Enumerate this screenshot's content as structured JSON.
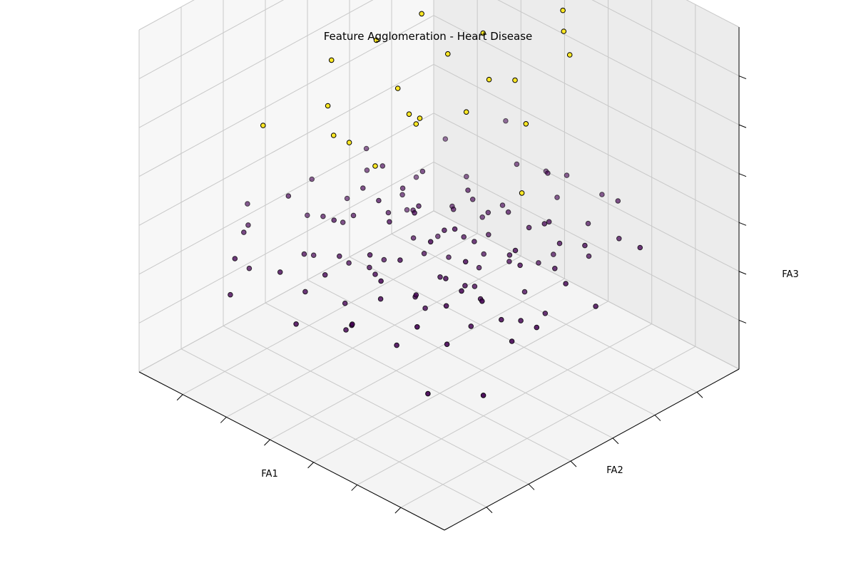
{
  "chart_data": {
    "type": "scatter",
    "title": "Feature Agglomeration - Heart Disease",
    "xlabel": "FA1",
    "ylabel": "FA2",
    "zlabel": "FA3",
    "grid": true,
    "xlim": [
      -3,
      3
    ],
    "ylim": [
      -3,
      3
    ],
    "zlim": [
      -3,
      3
    ],
    "series": [
      {
        "cluster": 0,
        "color": "#440154",
        "points": [
          [
            -2.4,
            -0.5,
            -0.9
          ],
          [
            -2.2,
            0.3,
            -0.6
          ],
          [
            -2.3,
            -0.9,
            -1.0
          ],
          [
            -2.0,
            -2.3,
            -1.4
          ],
          [
            -1.9,
            1.0,
            -0.4
          ],
          [
            -1.8,
            -0.2,
            -1.2
          ],
          [
            -1.7,
            -1.6,
            -1.0
          ],
          [
            -1.6,
            0.7,
            -0.8
          ],
          [
            -1.5,
            -2.0,
            -0.6
          ],
          [
            -1.5,
            0.0,
            -0.2
          ],
          [
            -1.4,
            1.6,
            -1.1
          ],
          [
            -1.3,
            -1.2,
            -0.7
          ],
          [
            -1.2,
            0.5,
            -1.3
          ],
          [
            -1.1,
            -0.6,
            -0.3
          ],
          [
            -1.0,
            2.0,
            -0.9
          ],
          [
            -1.0,
            -1.9,
            -1.2
          ],
          [
            -0.9,
            0.9,
            -0.5
          ],
          [
            -0.8,
            -0.3,
            -1.0
          ],
          [
            -0.8,
            -1.0,
            0.1
          ],
          [
            -0.7,
            1.3,
            -1.4
          ],
          [
            -0.6,
            -2.4,
            -0.8
          ],
          [
            -0.5,
            0.2,
            -0.6
          ],
          [
            -0.5,
            -0.8,
            -1.3
          ],
          [
            -0.4,
            1.8,
            -0.2
          ],
          [
            -0.3,
            -1.5,
            -0.9
          ],
          [
            -0.3,
            0.6,
            -1.1
          ],
          [
            -0.2,
            -0.1,
            -0.4
          ],
          [
            -0.1,
            2.3,
            -1.0
          ],
          [
            -0.1,
            -2.0,
            -1.3
          ],
          [
            0.0,
            1.0,
            -0.7
          ],
          [
            0.0,
            -0.5,
            0.0
          ],
          [
            0.1,
            0.3,
            -1.2
          ],
          [
            0.2,
            -1.2,
            -0.5
          ],
          [
            0.2,
            1.5,
            -0.9
          ],
          [
            0.3,
            -2.6,
            -1.1
          ],
          [
            0.4,
            0.0,
            -0.3
          ],
          [
            0.5,
            -0.9,
            -1.0
          ],
          [
            0.5,
            2.1,
            -0.6
          ],
          [
            0.6,
            -1.7,
            -0.8
          ],
          [
            0.7,
            0.7,
            -1.3
          ],
          [
            0.8,
            -0.4,
            -0.2
          ],
          [
            0.9,
            1.2,
            -1.1
          ],
          [
            1.0,
            -2.2,
            -0.7
          ],
          [
            1.0,
            -0.8,
            -1.2
          ],
          [
            1.1,
            0.4,
            -0.5
          ],
          [
            1.2,
            1.8,
            -1.0
          ],
          [
            1.3,
            -1.4,
            -0.9
          ],
          [
            1.4,
            -0.1,
            -0.4
          ],
          [
            1.5,
            0.9,
            -1.3
          ],
          [
            1.6,
            -2.5,
            -0.6
          ],
          [
            1.7,
            -0.6,
            -0.8
          ],
          [
            1.8,
            1.4,
            -1.1
          ],
          [
            1.9,
            -1.1,
            -0.3
          ],
          [
            2.0,
            0.2,
            -1.0
          ],
          [
            2.1,
            -1.8,
            -0.7
          ],
          [
            2.2,
            0.8,
            -0.5
          ],
          [
            2.3,
            -0.3,
            -1.2
          ],
          [
            2.4,
            -1.4,
            -0.9
          ],
          [
            -2.1,
            -1.3,
            -0.2
          ],
          [
            -1.9,
            -0.7,
            -0.9
          ],
          [
            -1.6,
            -1.2,
            -0.3
          ],
          [
            -1.4,
            0.2,
            -0.6
          ],
          [
            -1.2,
            -0.4,
            -1.0
          ],
          [
            -1.1,
            1.1,
            -0.4
          ],
          [
            -0.9,
            -1.4,
            -0.6
          ],
          [
            -0.6,
            -0.6,
            -0.8
          ],
          [
            -0.4,
            0.4,
            -1.2
          ],
          [
            -0.2,
            -1.0,
            -0.5
          ],
          [
            0.1,
            -0.2,
            -0.9
          ],
          [
            0.3,
            0.9,
            -0.4
          ],
          [
            0.6,
            -0.5,
            -1.1
          ],
          [
            0.8,
            0.3,
            -0.7
          ],
          [
            1.1,
            -1.0,
            -0.4
          ],
          [
            1.3,
            0.6,
            -0.8
          ],
          [
            1.6,
            -0.3,
            -1.0
          ],
          [
            1.9,
            0.5,
            -0.6
          ],
          [
            -1.7,
            0.4,
            -1.4
          ],
          [
            -1.3,
            0.8,
            -0.2
          ],
          [
            -0.7,
            0.0,
            -1.2
          ],
          [
            -0.2,
            0.8,
            -0.9
          ],
          [
            0.4,
            -1.5,
            -1.3
          ],
          [
            0.9,
            -0.1,
            -0.6
          ],
          [
            1.4,
            0.3,
            -0.2
          ],
          [
            -0.5,
            -1.7,
            -0.4
          ],
          [
            0.0,
            -1.3,
            -0.7
          ],
          [
            0.7,
            -2.0,
            -1.0
          ],
          [
            -1.0,
            0.4,
            -0.7
          ],
          [
            -0.3,
            1.1,
            -0.6
          ],
          [
            0.5,
            1.4,
            -1.2
          ],
          [
            1.2,
            -0.5,
            -0.6
          ],
          [
            -1.4,
            -0.8,
            -1.2
          ],
          [
            -0.8,
            0.6,
            -1.0
          ],
          [
            0.2,
            0.5,
            -0.5
          ],
          [
            0.8,
            -1.2,
            -0.8
          ],
          [
            1.5,
            -1.0,
            -1.2
          ],
          [
            -2.5,
            0.6,
            -1.0
          ],
          [
            2.5,
            0.0,
            -0.8
          ],
          [
            -1.8,
            1.8,
            -0.7
          ],
          [
            1.8,
            -2.0,
            -1.1
          ],
          [
            0.0,
            2.6,
            -0.8
          ],
          [
            -0.5,
            2.8,
            -1.0
          ],
          [
            2.8,
            -1.0,
            -0.9
          ],
          [
            -2.8,
            -2.0,
            -1.2
          ],
          [
            1.2,
            2.6,
            -0.4
          ],
          [
            -2.6,
            1.4,
            -0.3
          ],
          [
            2.0,
            2.2,
            -0.9
          ],
          [
            -0.9,
            -2.7,
            -0.5
          ],
          [
            1.4,
            -2.8,
            -1.0
          ],
          [
            -1.2,
            2.4,
            -0.6
          ],
          [
            0.6,
            2.8,
            -1.1
          ],
          [
            -1.5,
            0.9,
            -0.5
          ],
          [
            -0.6,
            -0.3,
            -0.1
          ],
          [
            0.3,
            -0.7,
            -0.2
          ],
          [
            -0.1,
            0.4,
            -0.8
          ],
          [
            0.6,
            0.1,
            -1.0
          ],
          [
            -0.4,
            -0.9,
            -1.1
          ],
          [
            1.0,
            0.7,
            -0.3
          ],
          [
            -1.0,
            -0.9,
            -0.5
          ],
          [
            0.4,
            1.1,
            -0.7
          ],
          [
            -0.8,
            1.5,
            -1.3
          ]
        ]
      },
      {
        "cluster": 1,
        "color": "#fde725",
        "points": [
          [
            -2.4,
            -0.8,
            1.6
          ],
          [
            -1.9,
            -0.2,
            2.3
          ],
          [
            -1.5,
            -1.0,
            2.7
          ],
          [
            -1.3,
            0.2,
            2.6
          ],
          [
            -0.9,
            -1.4,
            2.4
          ],
          [
            -0.5,
            0.5,
            2.1
          ],
          [
            -0.2,
            -0.6,
            1.8
          ],
          [
            0.1,
            1.0,
            2.4
          ],
          [
            0.3,
            -0.3,
            1.5
          ],
          [
            0.6,
            0.8,
            1.9
          ],
          [
            0.8,
            -1.0,
            1.1
          ],
          [
            1.1,
            0.3,
            1.3
          ],
          [
            1.3,
            -0.8,
            0.9
          ],
          [
            1.5,
            1.2,
            2.0
          ],
          [
            1.8,
            -0.4,
            1.0
          ],
          [
            2.1,
            0.9,
            1.4
          ],
          [
            2.3,
            -1.2,
            0.8
          ],
          [
            -1.1,
            1.4,
            2.8
          ],
          [
            0.4,
            2.0,
            3.0
          ],
          [
            2.5,
            0.4,
            1.1
          ],
          [
            -0.6,
            1.9,
            2.7
          ],
          [
            1.0,
            1.8,
            2.3
          ],
          [
            -1.7,
            0.9,
            2.9
          ],
          [
            0.0,
            -1.3,
            1.2
          ]
        ]
      }
    ]
  }
}
